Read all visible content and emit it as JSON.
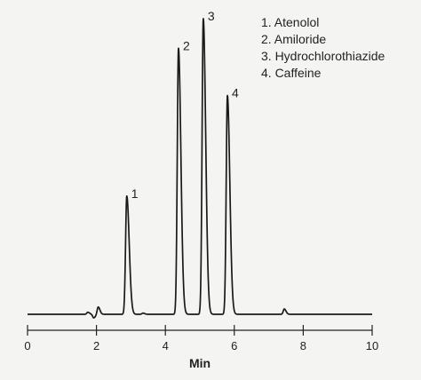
{
  "chart_data": {
    "type": "line",
    "xlabel": "Min",
    "ylabel": "",
    "title": "",
    "xlim": [
      0,
      10
    ],
    "x_ticks": [
      0,
      2,
      4,
      6,
      8,
      10
    ],
    "grid": false,
    "legend_position": "top-right",
    "legend": [
      "1. Atenolol",
      "2. Amiloride",
      "3. Hydrochlorothiazide",
      "4. Caffeine"
    ],
    "peaks": [
      {
        "label": "1",
        "name": "Atenolol",
        "retention_time": 2.88,
        "height": 0.4
      },
      {
        "label": "2",
        "name": "Amiloride",
        "retention_time": 4.38,
        "height": 0.9
      },
      {
        "label": "3",
        "name": "Hydrochlorothiazide",
        "retention_time": 5.1,
        "height": 1.0
      },
      {
        "label": "4",
        "name": "Caffeine",
        "retention_time": 5.8,
        "height": 0.74
      }
    ],
    "minor_features": [
      {
        "retention_time": 1.75,
        "height": 0.007
      },
      {
        "retention_time": 1.92,
        "height": -0.012
      },
      {
        "retention_time": 2.05,
        "height": 0.025
      },
      {
        "retention_time": 3.35,
        "height": 0.004
      },
      {
        "retention_time": 7.45,
        "height": 0.018
      }
    ],
    "series_color": "#1a1a1a"
  }
}
